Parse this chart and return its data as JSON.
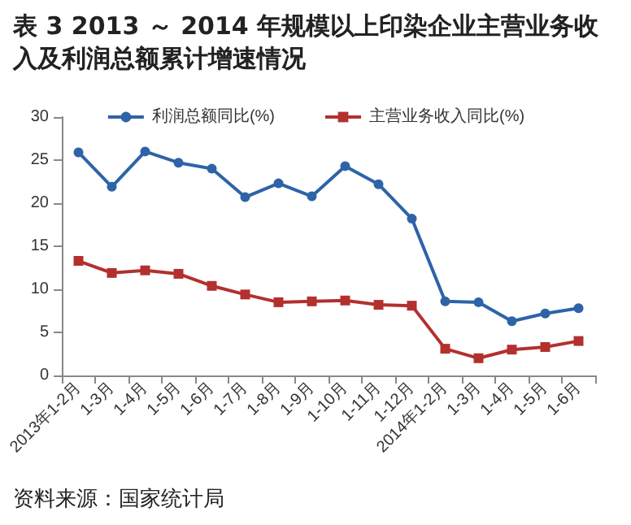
{
  "chart_data": {
    "type": "line",
    "title": "表 3 2013 ～ 2014 年规模以上印染企业主营业务收入及利润总额累计增速情况",
    "categories": [
      "2013年1-2月",
      "1-3月",
      "1-4月",
      "1-5月",
      "1-6月",
      "1-7月",
      "1-8月",
      "1-9月",
      "1-10月",
      "1-11月",
      "1-12月",
      "2014年1-2月",
      "1-3月",
      "1-4月",
      "1-5月",
      "1-6月"
    ],
    "series": [
      {
        "name": "利润总额同比(%)",
        "color": "#2e63a8",
        "marker": "circle",
        "values": [
          25.9,
          21.9,
          26.0,
          24.7,
          24.0,
          20.7,
          22.3,
          20.8,
          24.3,
          22.2,
          18.2,
          8.6,
          8.5,
          6.3,
          7.2,
          7.8
        ]
      },
      {
        "name": "主营业务收入同比(%)",
        "color": "#b3302f",
        "marker": "square",
        "values": [
          13.3,
          11.9,
          12.2,
          11.8,
          10.4,
          9.4,
          8.5,
          8.6,
          8.7,
          8.2,
          8.1,
          3.1,
          2.0,
          3.0,
          3.3,
          4.0
        ]
      }
    ],
    "ylim": [
      0,
      30
    ],
    "yticks": [
      0,
      5,
      10,
      15,
      20,
      25,
      30
    ],
    "grid": false,
    "legend": "top",
    "annotations": [
      "资料来源：国家统计局"
    ]
  }
}
